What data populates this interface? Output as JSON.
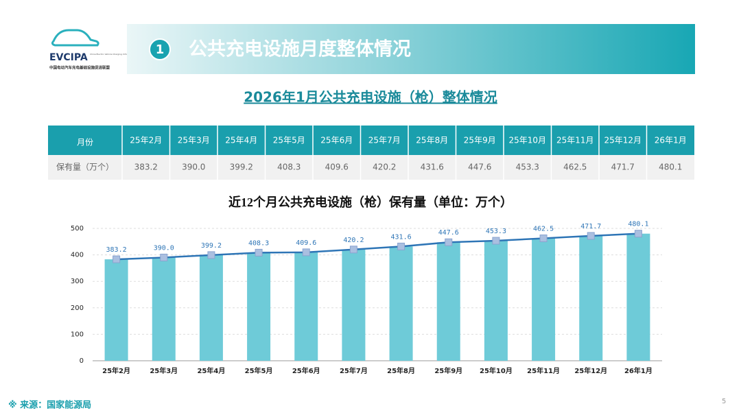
{
  "logo": {
    "name": "EVCIPA",
    "english": "China Electric Vehicle Charging Infrastructure Promotion Alliance",
    "chinese": "中国电动汽车充电基础设施促进联盟"
  },
  "header": {
    "number": "1",
    "title": "公共充电设施月度整体情况"
  },
  "subtitle": "2026年1月公共充电设施（枪）整体情况",
  "table": {
    "header": [
      "月份",
      "25年2月",
      "25年3月",
      "25年4月",
      "25年5月",
      "25年6月",
      "25年7月",
      "25年8月",
      "25年9月",
      "25年10月",
      "25年11月",
      "25年12月",
      "26年1月"
    ],
    "rows": [
      [
        "保有量（万个）",
        "383.2",
        "390.0",
        "399.2",
        "408.3",
        "409.6",
        "420.2",
        "431.6",
        "447.6",
        "453.3",
        "462.5",
        "471.7",
        "480.1"
      ]
    ]
  },
  "chart_data": {
    "type": "bar",
    "title": "近12个月公共充电设施（枪）保有量（单位：万个）",
    "categories": [
      "25年2月",
      "25年3月",
      "25年4月",
      "25年5月",
      "25年6月",
      "25年7月",
      "25年8月",
      "25年9月",
      "25年10月",
      "25年11月",
      "25年12月",
      "26年1月"
    ],
    "series": [
      {
        "type": "bar",
        "color": "#6ecbd8",
        "values": [
          383.2,
          390.0,
          399.2,
          408.3,
          409.6,
          420.2,
          431.6,
          447.6,
          453.3,
          462.5,
          471.7,
          480.1
        ]
      },
      {
        "type": "line",
        "color": "#2e75b6",
        "values": [
          383.2,
          390.0,
          399.2,
          408.3,
          409.6,
          420.2,
          431.6,
          447.6,
          453.3,
          462.5,
          471.7,
          480.1
        ],
        "value_labels": [
          "383.2",
          "390.0",
          "399.2",
          "408.3",
          "409.6",
          "420.2",
          "431.6",
          "447.6",
          "453.3",
          "462.5",
          "471.7",
          "480.1"
        ]
      }
    ],
    "ylim": [
      0,
      500
    ],
    "yticks": [
      0,
      100,
      200,
      300,
      400,
      500
    ],
    "grid": true
  },
  "source": "※ 来源：国家能源局",
  "page_number": "5"
}
